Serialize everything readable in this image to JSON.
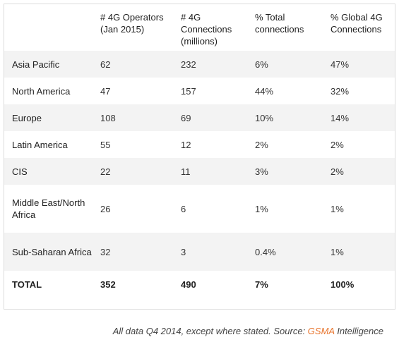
{
  "table": {
    "headers": [
      "",
      "# 4G Operators (Jan 2015)",
      "# 4G Connections (millions)",
      "% Total connections",
      "% Global 4G Connections"
    ],
    "rows": [
      {
        "region": "Asia Pacific",
        "operators": "62",
        "connections": "232",
        "pct_total": "6%",
        "pct_global": "47%"
      },
      {
        "region": "North America",
        "operators": "47",
        "connections": "157",
        "pct_total": "44%",
        "pct_global": "32%"
      },
      {
        "region": "Europe",
        "operators": "108",
        "connections": "69",
        "pct_total": "10%",
        "pct_global": "14%"
      },
      {
        "region": "Latin America",
        "operators": "55",
        "connections": "12",
        "pct_total": "2%",
        "pct_global": "2%"
      },
      {
        "region": "CIS",
        "operators": "22",
        "connections": "11",
        "pct_total": "3%",
        "pct_global": "2%"
      },
      {
        "region": "Middle East/North Africa",
        "operators": "26",
        "connections": "6",
        "pct_total": "1%",
        "pct_global": "1%"
      },
      {
        "region": "Sub-Saharan Africa",
        "operators": "32",
        "connections": "3",
        "pct_total": "0.4%",
        "pct_global": "1%"
      },
      {
        "region": "TOTAL",
        "operators": "352",
        "connections": "490",
        "pct_total": "7%",
        "pct_global": "100%"
      }
    ]
  },
  "footnote": {
    "prefix": "All data Q4 2014, except where stated. Source: ",
    "brand": "GSMA",
    "suffix": " Intelligence"
  },
  "colors": {
    "brand": "#e8752e",
    "row_stripe": "#f3f3f3",
    "border": "#dcdcdc"
  }
}
